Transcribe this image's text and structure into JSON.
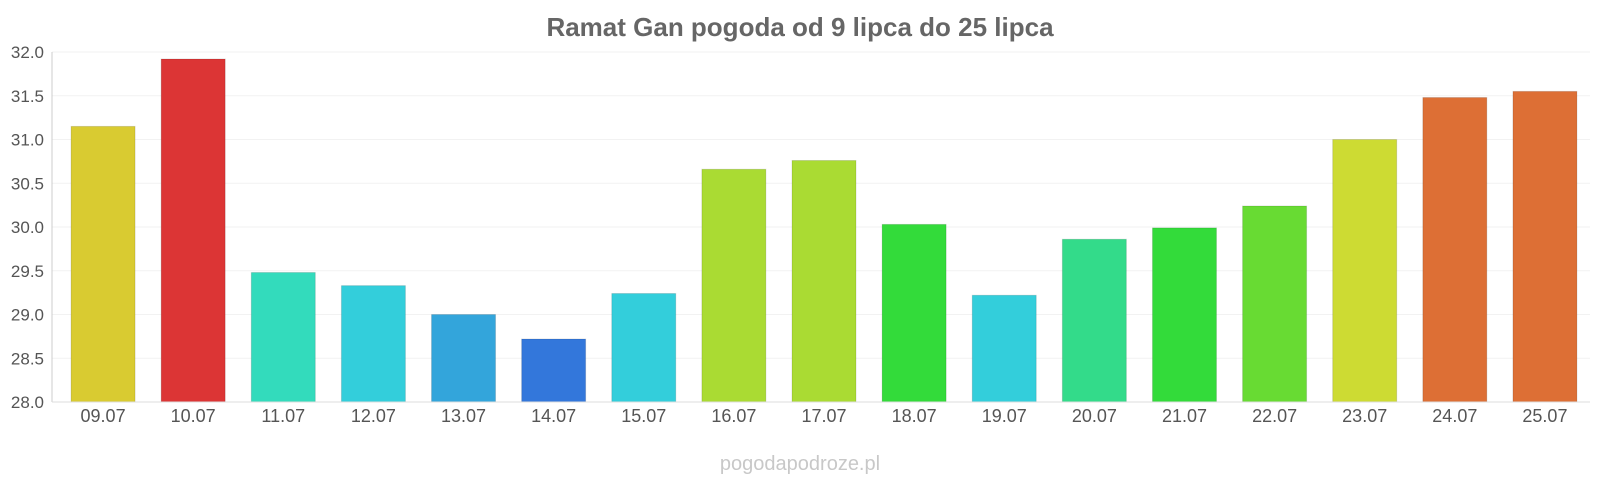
{
  "chart_data": {
    "type": "bar",
    "title": "Ramat Gan pogoda od 9 lipca do 25 lipca",
    "categories": [
      "09.07",
      "10.07",
      "11.07",
      "12.07",
      "13.07",
      "14.07",
      "15.07",
      "16.07",
      "17.07",
      "18.07",
      "19.07",
      "20.07",
      "21.07",
      "22.07",
      "23.07",
      "24.07",
      "25.07"
    ],
    "values": [
      31.15,
      31.92,
      29.48,
      29.33,
      29.0,
      28.72,
      29.24,
      30.66,
      30.76,
      30.03,
      29.22,
      29.86,
      29.99,
      30.24,
      31.0,
      31.48,
      31.55
    ],
    "colors": [
      "#d9cb31",
      "#dc3535",
      "#33dbbc",
      "#33cedb",
      "#33a5db",
      "#3377db",
      "#33cedb",
      "#aadb33",
      "#aadb33",
      "#33db3a",
      "#33cedb",
      "#33db8a",
      "#33db3a",
      "#68db33",
      "#cddb33",
      "#dd6f35",
      "#dd6f35"
    ],
    "ylim": [
      28.0,
      32.0
    ],
    "yticks": [
      "28.0",
      "28.5",
      "29.0",
      "29.5",
      "30.0",
      "30.5",
      "31.0",
      "31.5",
      "32.0"
    ],
    "grid": true,
    "legend": "none"
  },
  "credit": "pogodapodroze.pl"
}
